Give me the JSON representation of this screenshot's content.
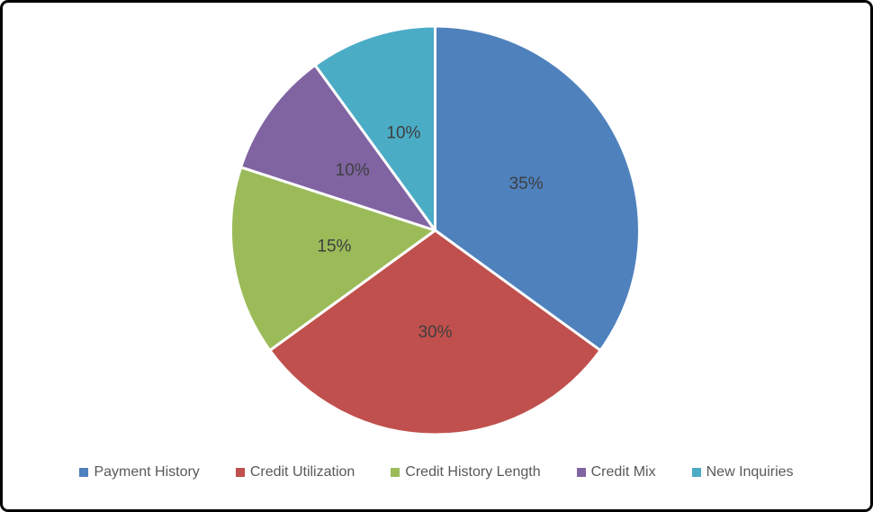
{
  "window": {
    "background": "#FFFFFF",
    "border_color": "#000000"
  },
  "chart_data": {
    "type": "pie",
    "categories": [
      "Payment History",
      "Credit Utilization",
      "Credit History Length",
      "Credit Mix",
      "New Inquiries"
    ],
    "values": [
      35,
      30,
      15,
      10,
      10
    ],
    "data_labels": [
      "35%",
      "30%",
      "15%",
      "10%",
      "10%"
    ],
    "colors": [
      "#4F81BD",
      "#C0504D",
      "#9BBB59",
      "#8064A2",
      "#4BACC6"
    ],
    "start_angle_deg": 0,
    "direction": "clockwise",
    "data_label_color": "#3F3F3F",
    "separator_color": "#FFFFFF",
    "legend_position": "bottom",
    "legend_text_color": "#595959"
  }
}
